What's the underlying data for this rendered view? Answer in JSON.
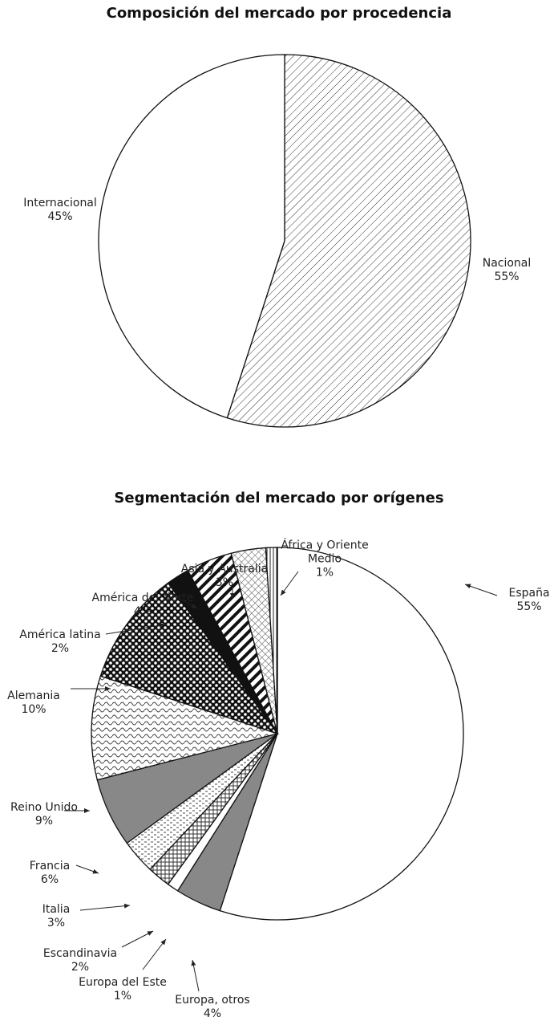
{
  "chart_data": [
    {
      "type": "pie",
      "title": "Composición del mercado por procedencia",
      "categories": [
        "Nacional",
        "Internacional"
      ],
      "values": [
        55,
        45
      ],
      "value_labels": [
        "55%",
        "45%"
      ]
    },
    {
      "type": "pie",
      "title": "Segmentación del mercado por orígenes",
      "categories": [
        "España",
        "Europa, otros",
        "Europa del Este",
        "Escandinavia",
        "Italia",
        "Francia",
        "Reino Unido",
        "Alemania",
        "América latina",
        "América del Norte",
        "Asia y Australia",
        "África y Oriente Medio"
      ],
      "values": [
        55,
        4,
        1,
        2,
        3,
        6,
        9,
        10,
        2,
        4,
        3,
        1
      ],
      "value_labels": [
        "55%",
        "4%",
        "1%",
        "2%",
        "3%",
        "6%",
        "9%",
        "10%",
        "2%",
        "4%",
        "3%",
        "1%"
      ]
    }
  ]
}
